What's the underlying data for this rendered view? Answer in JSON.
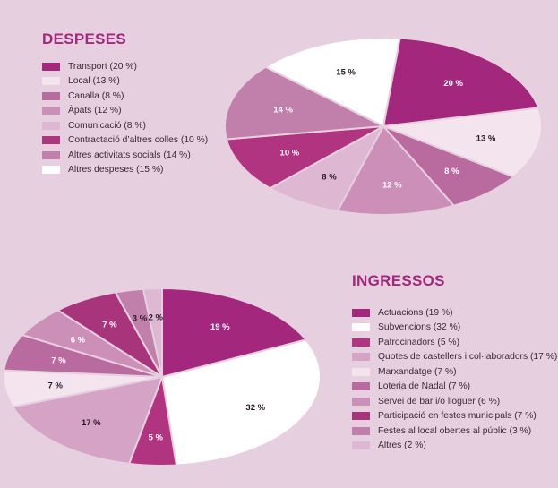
{
  "chart_data": [
    {
      "type": "pie",
      "title": "DESPESES",
      "legend_position": "left",
      "categories": [
        "Transport",
        "Local",
        "Canalla",
        "Àpats",
        "Comunicació",
        "Contractació d’altres colles",
        "Altres activitats socials",
        "Altres despeses"
      ],
      "legend_labels": [
        "Transport (20 %)",
        "Local (13 %)",
        "Canalla (8 %)",
        "Àpats (12 %)",
        "Comunicació (8 %)",
        "Contractació d’altres colles (10 %)",
        "Altres activitats socials (14 %)",
        "Altres despeses (15 %)"
      ],
      "values": [
        20,
        13,
        8,
        12,
        8,
        10,
        14,
        15
      ],
      "data_labels": [
        "20 %",
        "13 %",
        "8 %",
        "12 %",
        "8 %",
        "10 %",
        "14 %",
        "15 %"
      ],
      "colors": [
        "#A3277D",
        "#F3E4EE",
        "#B96B9F",
        "#CC8FB8",
        "#DEB7D2",
        "#B0347F",
        "#C17FAB",
        "#FFFFFF"
      ],
      "label_colors": [
        "#FFFFFF",
        "#2A1A24",
        "#FFFFFF",
        "#FFFFFF",
        "#2A1A24",
        "#FFFFFF",
        "#FFFFFF",
        "#2A1A24"
      ]
    },
    {
      "type": "pie",
      "title": "INGRESSOS",
      "legend_position": "right",
      "categories": [
        "Actuacions",
        "Subvencions",
        "Patrocinadors",
        "Quotes de castellers i col·laboradors",
        "Marxandatge",
        "Loteria de Nadal",
        "Servei de bar i/o lloguer",
        "Participació en festes municipals",
        "Festes al local obertes al públic",
        "Altres"
      ],
      "legend_labels": [
        "Actuacions (19 %)",
        "Subvencions (32 %)",
        "Patrocinadors (5 %)",
        "Quotes de castellers i col·laboradors (17 %)",
        "Marxandatge (7 %)",
        "Loteria de Nadal (7 %)",
        "Servei de bar i/o lloguer (6 %)",
        "Participació en festes municipals (7 %)",
        "Festes al local obertes al públic (3 %)",
        "Altres (2 %)"
      ],
      "values": [
        19,
        32,
        5,
        17,
        7,
        7,
        6,
        7,
        3,
        2
      ],
      "data_labels": [
        "19 %",
        "32 %",
        "5 %",
        "17 %",
        "7 %",
        "7 %",
        "6 %",
        "7 %",
        "3 %",
        "2 %"
      ],
      "colors": [
        "#A3277D",
        "#FFFFFF",
        "#B0347F",
        "#D5A3C6",
        "#F3E4EE",
        "#B96B9F",
        "#CC8FB8",
        "#A8347C",
        "#C17FAB",
        "#DEB7D2"
      ],
      "label_colors": [
        "#FFFFFF",
        "#2A1A24",
        "#FFFFFF",
        "#2A1A24",
        "#2A1A24",
        "#FFFFFF",
        "#FFFFFF",
        "#FFFFFF",
        "#2A1A24",
        "#2A1A24"
      ]
    }
  ]
}
